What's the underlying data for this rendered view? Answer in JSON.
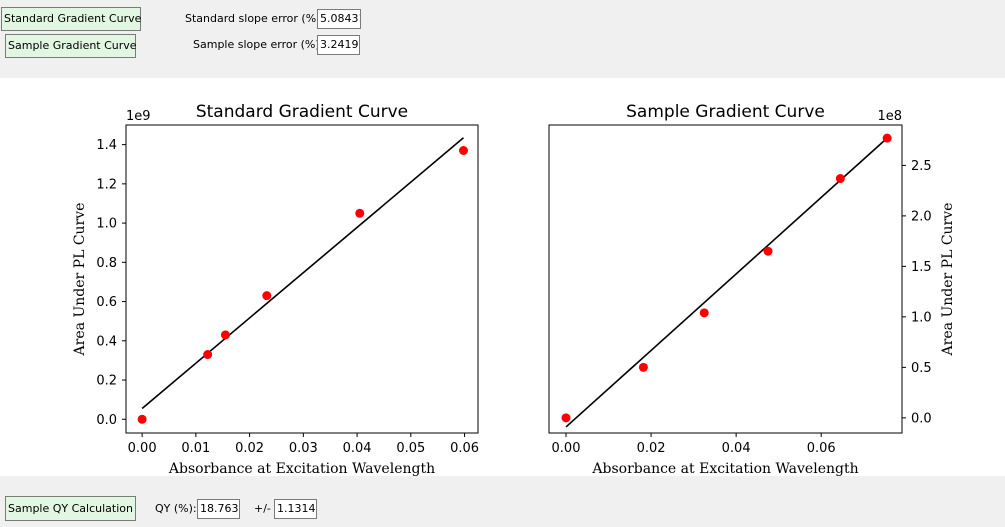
{
  "controls": {
    "std_button": "Standard Gradient Curve",
    "sample_button": "Sample Gradient Curve",
    "std_slope_label": "Standard slope error (%):",
    "std_slope_value": "5.08431",
    "sample_slope_label": "Sample slope error (%):",
    "sample_slope_value": "3.24190",
    "qy_button": "Sample QY Calculation",
    "qy_label": "QY (%):",
    "qy_value": "18.7630",
    "pm_label": "+/-",
    "pm_value": "1.13140"
  },
  "chart_data": [
    {
      "type": "scatter",
      "title": "Standard Gradient Curve",
      "xlabel": "Absorbance at Excitation Wavelength",
      "ylabel": "Area Under PL Curve",
      "y_offset_text": "1e9",
      "y_scale": 1000000000,
      "xlim": [
        -0.003,
        0.0625
      ],
      "ylim": [
        -0.07,
        1.5
      ],
      "xticks": [
        "0.00",
        "0.01",
        "0.02",
        "0.03",
        "0.04",
        "0.05",
        "0.06"
      ],
      "yticks": [
        "0.0",
        "0.2",
        "0.4",
        "0.6",
        "0.8",
        "1.0",
        "1.2",
        "1.4"
      ],
      "points": {
        "x": [
          0.0,
          0.0122,
          0.0155,
          0.0232,
          0.0405,
          0.0598
        ],
        "y": [
          0.0,
          0.33,
          0.43,
          0.63,
          1.05,
          1.37
        ]
      },
      "fit_line": {
        "x": [
          0.0,
          0.0598
        ],
        "y": [
          0.055,
          1.435
        ]
      },
      "point_color": "#ff0000",
      "line_color": "#000000",
      "yaxis_side": "left"
    },
    {
      "type": "scatter",
      "title": "Sample Gradient Curve",
      "xlabel": "Absorbance at Excitation Wavelength",
      "ylabel": "Area Under PL Curve",
      "y_offset_text": "1e8",
      "y_scale": 100000000,
      "xlim": [
        -0.004,
        0.079
      ],
      "ylim": [
        -0.15,
        2.9
      ],
      "xticks": [
        "0.00",
        "0.02",
        "0.04",
        "0.06"
      ],
      "yticks": [
        "0.0",
        "0.5",
        "1.0",
        "1.5",
        "2.0",
        "2.5"
      ],
      "points": {
        "x": [
          0.0,
          0.0182,
          0.0325,
          0.0475,
          0.0645,
          0.0755
        ],
        "y": [
          0.0,
          0.5,
          1.04,
          1.65,
          2.37,
          2.77
        ]
      },
      "fit_line": {
        "x": [
          0.0,
          0.0755
        ],
        "y": [
          -0.09,
          2.77
        ]
      },
      "point_color": "#ff0000",
      "line_color": "#000000",
      "yaxis_side": "right"
    }
  ]
}
